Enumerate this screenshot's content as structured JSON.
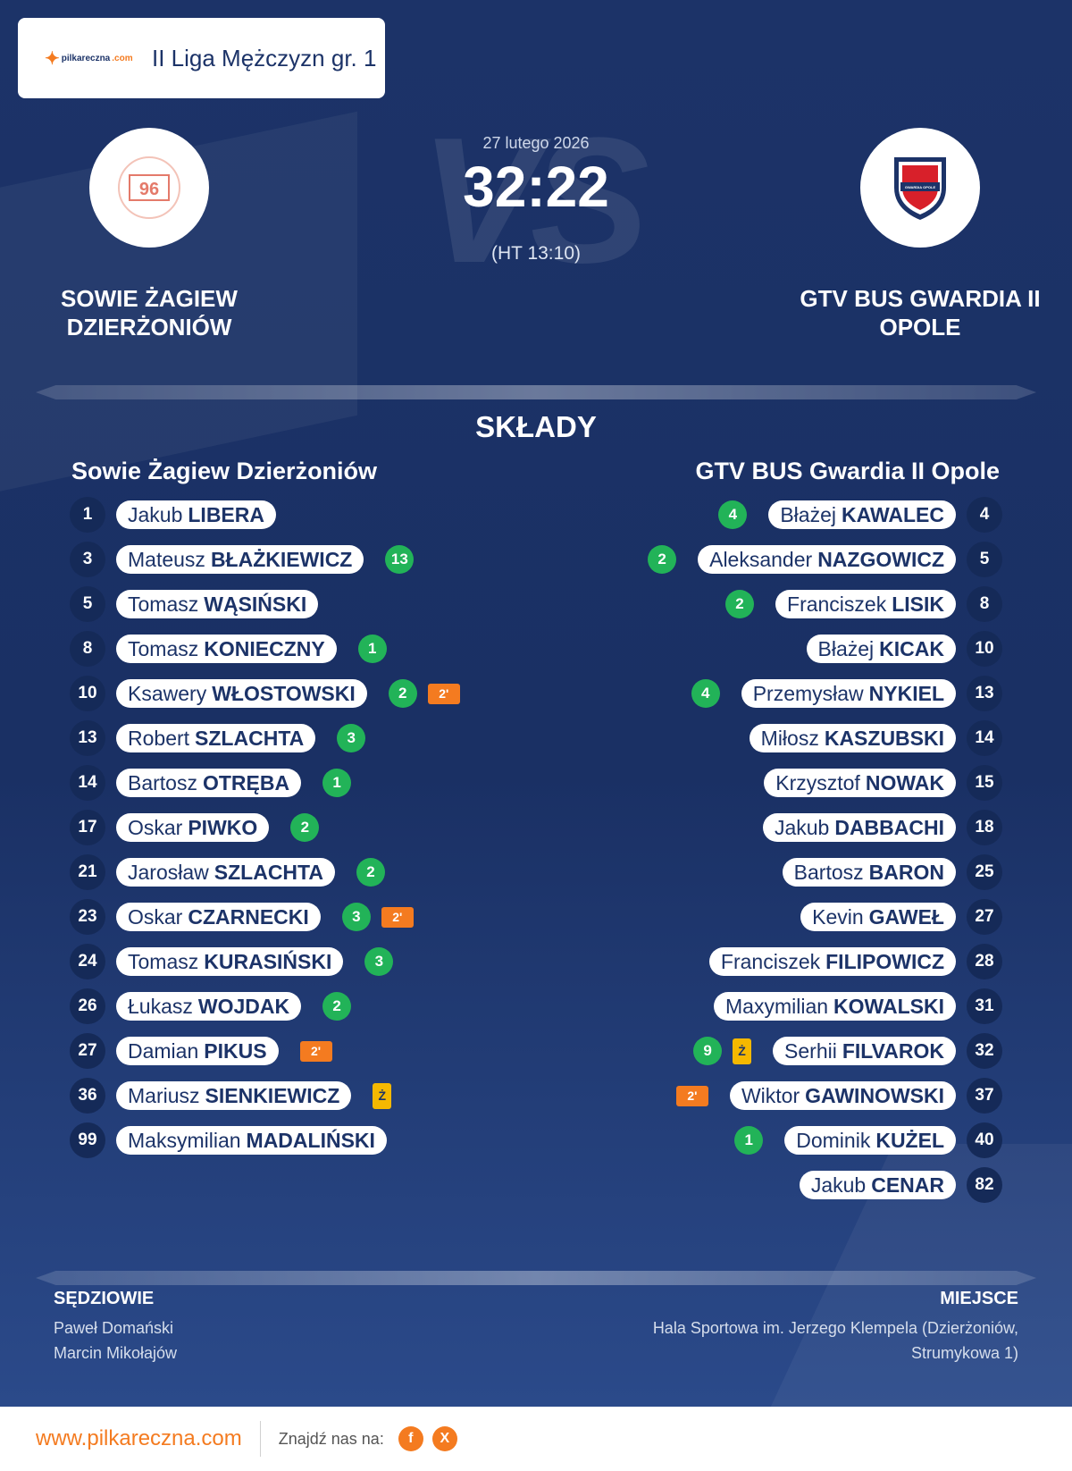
{
  "league": "II Liga Mężczyzn gr. 1",
  "brand": {
    "logo_text": "pilkareczna",
    "logo_sub": ".com"
  },
  "match": {
    "date": "27 lutego 2026",
    "score": "32:22",
    "halftime": "(HT 13:10)",
    "vs_text": "VS"
  },
  "home": {
    "name_line1": "SOWIE ŻAGIEW",
    "name_line2": "DZIERŻONIÓW",
    "heading": "Sowie Żagiew Dzierżoniów",
    "logo_text": "96"
  },
  "away": {
    "name_line1": "GTV BUS GWARDIA II",
    "name_line2": "OPOLE",
    "heading": "GTV BUS Gwardia II Opole",
    "logo_text": "GWARDIA OPOLE"
  },
  "section_title": "SKŁADY",
  "home_players": [
    {
      "number": "1",
      "first": "Jakub",
      "last": "LIBERA",
      "goals": "",
      "card": ""
    },
    {
      "number": "3",
      "first": "Mateusz",
      "last": "BŁAŻKIEWICZ",
      "goals": "13",
      "card": ""
    },
    {
      "number": "5",
      "first": "Tomasz",
      "last": "WĄSIŃSKI",
      "goals": "",
      "card": ""
    },
    {
      "number": "8",
      "first": "Tomasz",
      "last": "KONIECZNY",
      "goals": "1",
      "card": ""
    },
    {
      "number": "10",
      "first": "Ksawery",
      "last": "WŁOSTOWSKI",
      "goals": "2",
      "card": "2'"
    },
    {
      "number": "13",
      "first": "Robert",
      "last": "SZLACHTA",
      "goals": "3",
      "card": ""
    },
    {
      "number": "14",
      "first": "Bartosz",
      "last": "OTRĘBA",
      "goals": "1",
      "card": ""
    },
    {
      "number": "17",
      "first": "Oskar",
      "last": "PIWKO",
      "goals": "2",
      "card": ""
    },
    {
      "number": "21",
      "first": "Jarosław",
      "last": "SZLACHTA",
      "goals": "2",
      "card": ""
    },
    {
      "number": "23",
      "first": "Oskar",
      "last": "CZARNECKI",
      "goals": "3",
      "card": "2'"
    },
    {
      "number": "24",
      "first": "Tomasz",
      "last": "KURASIŃSKI",
      "goals": "3",
      "card": ""
    },
    {
      "number": "26",
      "first": "Łukasz",
      "last": "WOJDAK",
      "goals": "2",
      "card": ""
    },
    {
      "number": "27",
      "first": "Damian",
      "last": "PIKUS",
      "goals": "",
      "card": "2'"
    },
    {
      "number": "36",
      "first": "Mariusz",
      "last": "SIENKIEWICZ",
      "goals": "",
      "card": "Ż"
    },
    {
      "number": "99",
      "first": "Maksymilian",
      "last": "MADALIŃSKI",
      "goals": "",
      "card": ""
    }
  ],
  "away_players": [
    {
      "number": "4",
      "first": "Błażej",
      "last": "KAWALEC",
      "goals": "4",
      "card": ""
    },
    {
      "number": "5",
      "first": "Aleksander",
      "last": "NAZGOWICZ",
      "goals": "2",
      "card": ""
    },
    {
      "number": "8",
      "first": "Franciszek",
      "last": "LISIK",
      "goals": "2",
      "card": ""
    },
    {
      "number": "10",
      "first": "Błażej",
      "last": "KICAK",
      "goals": "",
      "card": ""
    },
    {
      "number": "13",
      "first": "Przemysław",
      "last": "NYKIEL",
      "goals": "4",
      "card": ""
    },
    {
      "number": "14",
      "first": "Miłosz",
      "last": "KASZUBSKI",
      "goals": "",
      "card": ""
    },
    {
      "number": "15",
      "first": "Krzysztof",
      "last": "NOWAK",
      "goals": "",
      "card": ""
    },
    {
      "number": "18",
      "first": "Jakub",
      "last": "DABBACHI",
      "goals": "",
      "card": ""
    },
    {
      "number": "25",
      "first": "Bartosz",
      "last": "BARON",
      "goals": "",
      "card": ""
    },
    {
      "number": "27",
      "first": "Kevin",
      "last": "GAWEŁ",
      "goals": "",
      "card": ""
    },
    {
      "number": "28",
      "first": "Franciszek",
      "last": "FILIPOWICZ",
      "goals": "",
      "card": ""
    },
    {
      "number": "31",
      "first": "Maxymilian",
      "last": "KOWALSKI",
      "goals": "",
      "card": ""
    },
    {
      "number": "32",
      "first": "Serhii",
      "last": "FILVAROK",
      "goals": "9",
      "card": "Ż"
    },
    {
      "number": "37",
      "first": "Wiktor",
      "last": "GAWINOWSKI",
      "goals": "",
      "card": "2'"
    },
    {
      "number": "40",
      "first": "Dominik",
      "last": "KUŻEL",
      "goals": "1",
      "card": ""
    },
    {
      "number": "82",
      "first": "Jakub",
      "last": "CENAR",
      "goals": "",
      "card": ""
    }
  ],
  "referees": {
    "heading": "SĘDZIOWIE",
    "names": [
      "Paweł Domański",
      "Marcin Mikołajów"
    ]
  },
  "venue": {
    "heading": "MIEJSCE",
    "line1": "Hala Sportowa im. Jerzego Klempela (Dzierżoniów,",
    "line2": "Strumykowa 1)"
  },
  "footer": {
    "site": "www.pilkareczna.com",
    "find_us": "Znajdź nas na:",
    "social": [
      {
        "label": "f",
        "icon": "facebook-icon"
      },
      {
        "label": "X",
        "icon": "x-icon"
      }
    ]
  },
  "colors": {
    "navy": "#1c3368",
    "accent": "#f47b20",
    "goal": "#22b358",
    "yellow": "#f5b800"
  }
}
